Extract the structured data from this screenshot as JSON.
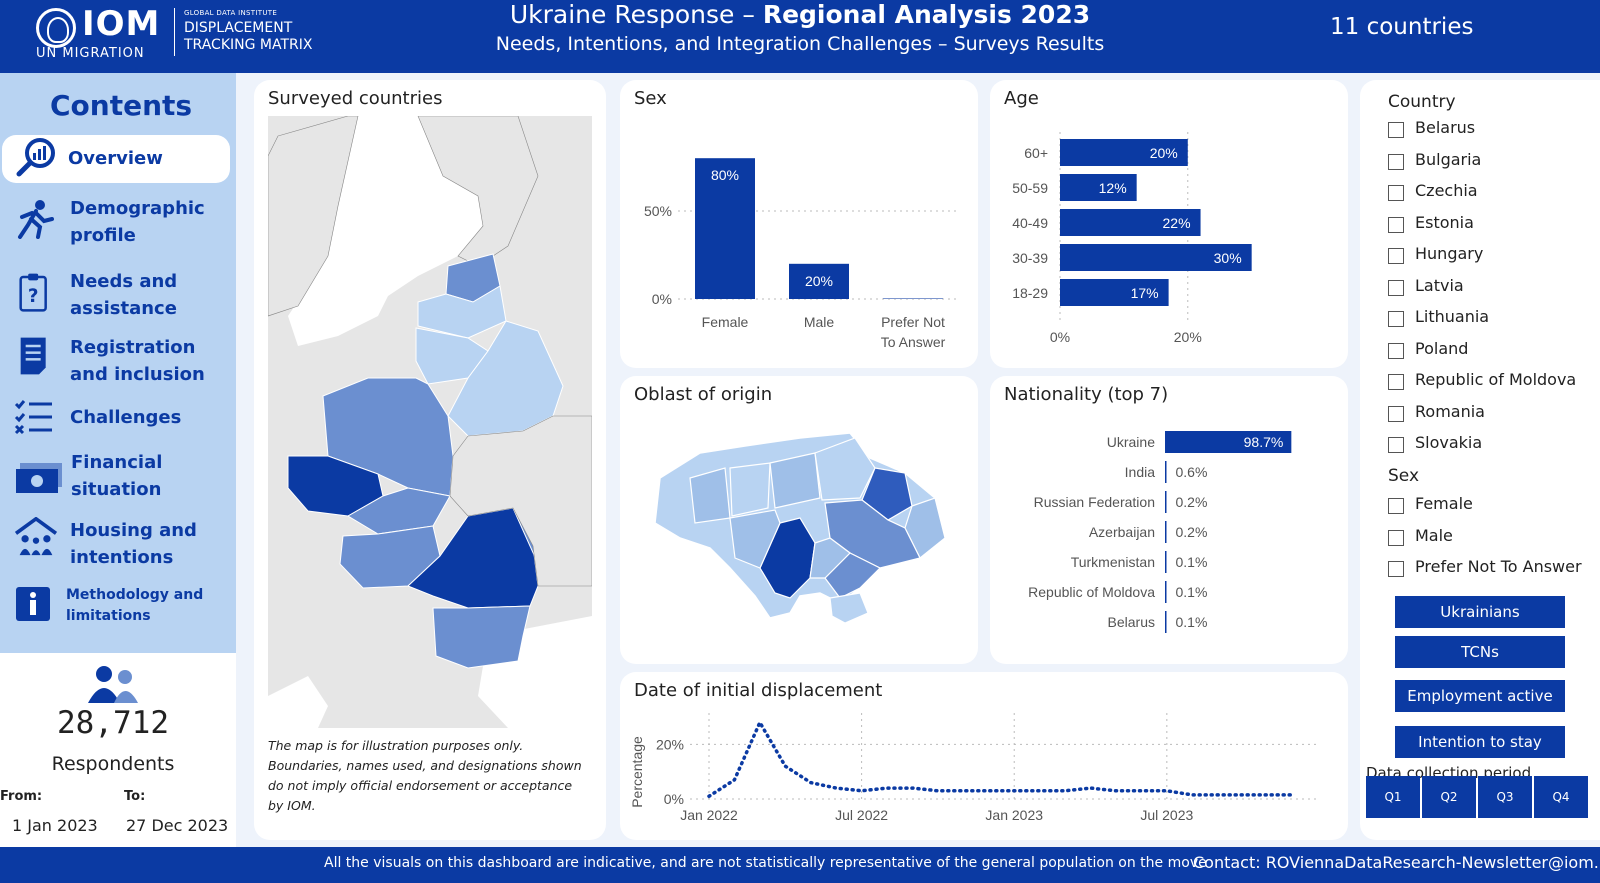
{
  "header": {
    "logo_org": "IOM",
    "logo_sub": "UN MIGRATION",
    "logo_institute": "GLOBAL DATA INSTITUTE",
    "logo_dtm_line1": "DISPLACEMENT",
    "logo_dtm_line2": "TRACKING MATRIX",
    "title_prefix": "Ukraine Response – ",
    "title_bold": "Regional Analysis 2023",
    "subtitle": "Needs, Intentions, and Integration Challenges – Surveys Results",
    "country_count": "11 countries"
  },
  "sidebar": {
    "title": "Contents",
    "items": [
      {
        "label": "Overview",
        "icon": "magnifier-chart-icon",
        "active": true
      },
      {
        "label": "Demographic profile",
        "icon": "running-person-icon"
      },
      {
        "label": "Needs and assistance",
        "icon": "clipboard-question-icon"
      },
      {
        "label": "Registration and inclusion",
        "icon": "document-icon"
      },
      {
        "label": "Challenges",
        "icon": "checklist-icon"
      },
      {
        "label": "Financial situation",
        "icon": "money-icon"
      },
      {
        "label": "Housing and intentions",
        "icon": "family-house-icon"
      },
      {
        "label": "Methodology and limitations",
        "icon": "info-icon"
      }
    ]
  },
  "respondents": {
    "count": "28,712",
    "label": "Respondents",
    "from_label": "From:",
    "to_label": "To:",
    "from_value": "1 Jan 2023",
    "to_value": "27 Dec 2023"
  },
  "map_card": {
    "title": "Surveyed countries",
    "note": "The map is for illustration purposes only. Boundaries, names used, and designations shown do not imply official endorsement or acceptance by IOM."
  },
  "oblast_card": {
    "title": "Oblast of origin"
  },
  "colors": {
    "primary": "#0b3aa3",
    "light": "#b8d3f2",
    "mid": "#6b8fd0"
  },
  "charts": {
    "sex": {
      "title": "Sex",
      "chart_data": {
        "type": "bar",
        "categories": [
          "Female",
          "Male",
          "Prefer Not To Answer"
        ],
        "values": [
          80,
          20,
          0.3
        ],
        "value_labels": [
          "80%",
          "20%",
          ""
        ],
        "yticks": [
          "0%",
          "50%"
        ],
        "ylim": [
          0,
          100
        ]
      }
    },
    "age": {
      "title": "Age",
      "chart_data": {
        "type": "bar",
        "orientation": "horizontal",
        "categories": [
          "60+",
          "50-59",
          "40-49",
          "30-39",
          "18-29"
        ],
        "values": [
          20,
          12,
          22,
          30,
          17
        ],
        "value_labels": [
          "20%",
          "12%",
          "22%",
          "30%",
          "17%"
        ],
        "xticks": [
          "0%",
          "20%"
        ],
        "xlim": [
          0,
          36
        ]
      }
    },
    "nationality": {
      "title": "Nationality (top 7)",
      "chart_data": {
        "type": "bar",
        "orientation": "horizontal",
        "categories": [
          "Ukraine",
          "India",
          "Russian Federation",
          "Azerbaijan",
          "Turkmenistan",
          "Republic of Moldova",
          "Belarus"
        ],
        "values": [
          98.7,
          0.6,
          0.2,
          0.2,
          0.1,
          0.1,
          0.1
        ],
        "value_labels": [
          "98.7%",
          "0.6%",
          "0.2%",
          "0.2%",
          "0.1%",
          "0.1%",
          "0.1%"
        ]
      }
    },
    "displacement": {
      "title": "Date of initial displacement",
      "chart_data": {
        "type": "line",
        "ylabel": "Percentage",
        "yticks": [
          "0%",
          "20%"
        ],
        "xticks": [
          "Jan 2022",
          "Jul 2022",
          "Jan 2023",
          "Jul 2023"
        ],
        "x": [
          "2022-01",
          "2022-02",
          "2022-03",
          "2022-04",
          "2022-05",
          "2022-06",
          "2022-07",
          "2022-08",
          "2022-09",
          "2022-10",
          "2022-11",
          "2022-12",
          "2023-01",
          "2023-02",
          "2023-03",
          "2023-04",
          "2023-05",
          "2023-06",
          "2023-07",
          "2023-08",
          "2023-09",
          "2023-10",
          "2023-11",
          "2023-12"
        ],
        "values": [
          1,
          7,
          28,
          12,
          6,
          4,
          3,
          4,
          4,
          3,
          3,
          3,
          3,
          3,
          3,
          4,
          3,
          3,
          3,
          1.5,
          1.5,
          1.5,
          1.5,
          1.5
        ],
        "ylim": [
          0,
          30
        ]
      }
    }
  },
  "filters": {
    "country_header": "Country",
    "countries": [
      "Belarus",
      "Bulgaria",
      "Czechia",
      "Estonia",
      "Hungary",
      "Latvia",
      "Lithuania",
      "Poland",
      "Republic of Moldova",
      "Romania",
      "Slovakia"
    ],
    "sex_header": "Sex",
    "sexes": [
      "Female",
      "Male",
      "Prefer Not To Answer"
    ],
    "buttons": [
      "Ukrainians",
      "TCNs",
      "Employment active",
      "Intention to stay"
    ],
    "period_label": "Data collection period",
    "quarters": [
      "Q1",
      "Q2",
      "Q3",
      "Q4"
    ]
  },
  "footer": {
    "disclaimer": "All the visuals on this dashboard are indicative, and are not statistically representative of the general population on the move",
    "contact": "Contact: ROViennaDataResearch-Newsletter@iom.int"
  }
}
